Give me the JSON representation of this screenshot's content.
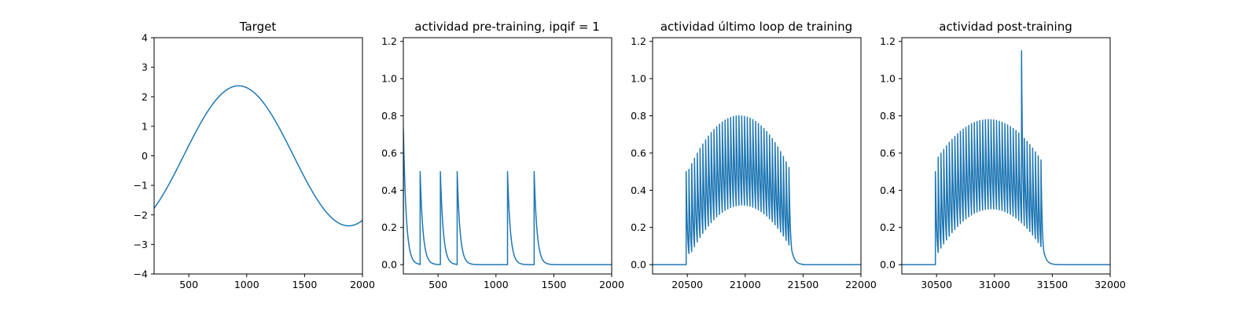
{
  "colors": {
    "line": "#1f77b4",
    "axes": "#000000",
    "background": "#ffffff"
  },
  "chart_data": [
    {
      "type": "line",
      "title": "Target",
      "xlim": [
        200,
        2000
      ],
      "ylim": [
        -4,
        4
      ],
      "xticks": [
        500,
        1000,
        1500,
        2000
      ],
      "yticks": [
        -4,
        -3,
        -2,
        -1,
        0,
        1,
        2,
        3,
        4
      ],
      "series": [
        {
          "kind": "sine",
          "x_range": [
            200,
            2000
          ],
          "amplitude": 2.37,
          "peak_x": 930,
          "period": 1900
        }
      ]
    },
    {
      "type": "line",
      "title": "actividad pre-training, ipqif = 1",
      "xlim": [
        200,
        2000
      ],
      "ylim": [
        -0.05,
        1.22
      ],
      "xticks": [
        500,
        1000,
        1500,
        2000
      ],
      "yticks": [
        0.0,
        0.2,
        0.4,
        0.6,
        0.8,
        1.0,
        1.2
      ],
      "series": [
        {
          "kind": "spikes",
          "x_range": [
            200,
            2000
          ],
          "baseline": 0.0,
          "decay": 25,
          "spikes": [
            {
              "x": 200,
              "y": 0.73
            },
            {
              "x": 345,
              "y": 0.5
            },
            {
              "x": 520,
              "y": 0.5
            },
            {
              "x": 665,
              "y": 0.5
            },
            {
              "x": 1100,
              "y": 0.5
            },
            {
              "x": 1330,
              "y": 0.5
            }
          ]
        }
      ]
    },
    {
      "type": "line",
      "title": "actividad último loop de training",
      "xlim": [
        20200,
        22000
      ],
      "ylim": [
        -0.05,
        1.22
      ],
      "xticks": [
        20500,
        21000,
        21500,
        22000
      ],
      "yticks": [
        0.0,
        0.2,
        0.4,
        0.6,
        0.8,
        1.0,
        1.2
      ],
      "series": [
        {
          "kind": "burst",
          "x_range": [
            20200,
            22000
          ],
          "baseline": 0.0,
          "start": 20490,
          "end": 21380,
          "period": 24,
          "decay": 25,
          "tail_end_x": 21460,
          "peak_x": 20950,
          "peak_min": 0.5,
          "peak_max": 0.8,
          "trough_min": 0.06,
          "trough_max": 0.32,
          "first_peak": 0.5
        }
      ]
    },
    {
      "type": "line",
      "title": "actividad post-training",
      "xlim": [
        30200,
        32000
      ],
      "ylim": [
        -0.05,
        1.22
      ],
      "xticks": [
        30500,
        31000,
        31500,
        32000
      ],
      "yticks": [
        0.0,
        0.2,
        0.4,
        0.6,
        0.8,
        1.0,
        1.2
      ],
      "series": [
        {
          "kind": "burst",
          "x_range": [
            30200,
            32000
          ],
          "baseline": 0.0,
          "start": 30490,
          "end": 31420,
          "period": 24,
          "decay": 25,
          "tail_end_x": 31520,
          "peak_x": 30950,
          "peak_min": 0.55,
          "peak_max": 0.78,
          "trough_min": 0.06,
          "trough_max": 0.3,
          "first_peak": 0.5,
          "outlier": {
            "x": 31240,
            "y": 1.15
          }
        }
      ]
    }
  ]
}
